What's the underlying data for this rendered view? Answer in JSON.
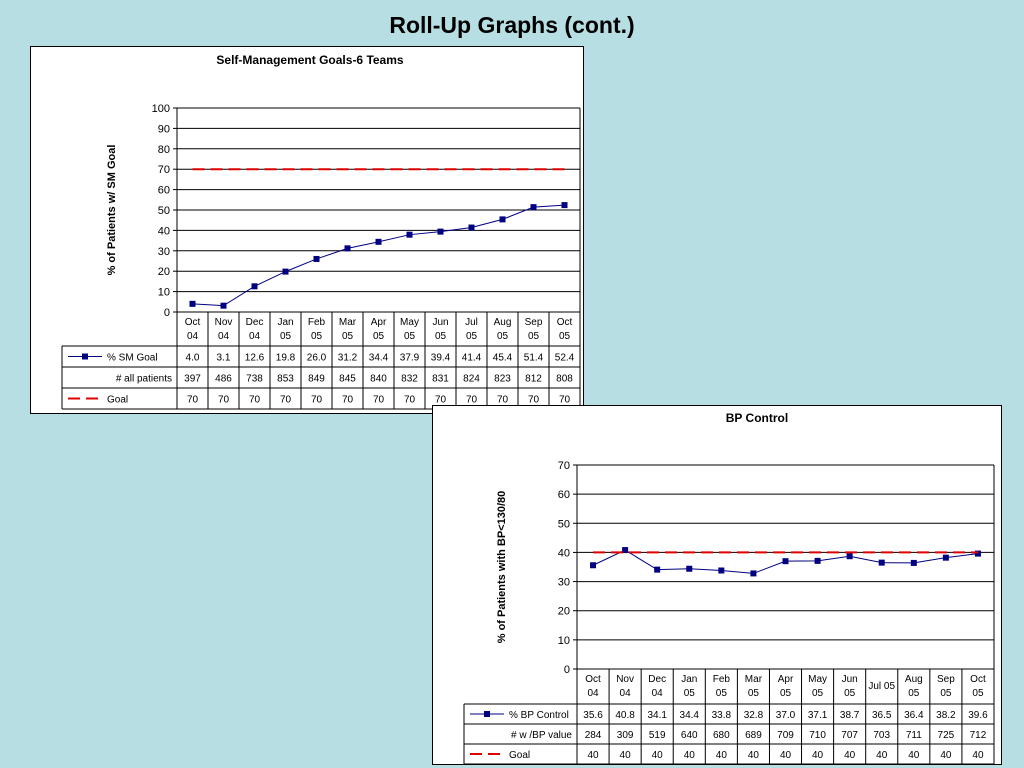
{
  "slide": {
    "title": "Roll-Up Graphs (cont.)"
  },
  "colors": {
    "series": "#000080",
    "goal": "#e00000",
    "background": "#b7dfe3"
  },
  "chart_data": [
    {
      "type": "line",
      "title": "Self-Management Goals-6 Teams",
      "ylabel": "% of Patients w/ SM Goal",
      "xlabel": "",
      "ylim": [
        0,
        100
      ],
      "yticks": [
        0,
        10,
        20,
        30,
        40,
        50,
        60,
        70,
        80,
        90,
        100
      ],
      "grid": true,
      "legend": "data-table",
      "categories": [
        [
          "Oct",
          "04"
        ],
        [
          "Nov",
          "04"
        ],
        [
          "Dec",
          "04"
        ],
        [
          "Jan",
          "05"
        ],
        [
          "Feb",
          "05"
        ],
        [
          "Mar",
          "05"
        ],
        [
          "Apr",
          "05"
        ],
        [
          "May",
          "05"
        ],
        [
          "Jun",
          "05"
        ],
        [
          "Jul",
          "05"
        ],
        [
          "Aug",
          "05"
        ],
        [
          "Sep",
          "05"
        ],
        [
          "Oct",
          "05"
        ]
      ],
      "series": [
        {
          "name": "% SM Goal",
          "style": "line-marker",
          "values": [
            4.0,
            3.1,
            12.6,
            19.8,
            26.0,
            31.2,
            34.4,
            37.9,
            39.4,
            41.4,
            45.4,
            51.4,
            52.4
          ],
          "labels": [
            "4.0",
            "3.1",
            "12.6",
            "19.8",
            "26.0",
            "31.2",
            "34.4",
            "37.9",
            "39.4",
            "41.4",
            "45.4",
            "51.4",
            "52.4"
          ]
        },
        {
          "name": "Goal",
          "style": "dashed",
          "values": [
            70,
            70,
            70,
            70,
            70,
            70,
            70,
            70,
            70,
            70,
            70,
            70,
            70
          ]
        }
      ],
      "table_rows": [
        {
          "label": "% SM Goal",
          "legend": "line-marker",
          "values": [
            "4.0",
            "3.1",
            "12.6",
            "19.8",
            "26.0",
            "31.2",
            "34.4",
            "37.9",
            "39.4",
            "41.4",
            "45.4",
            "51.4",
            "52.4"
          ]
        },
        {
          "label": "# all patients",
          "legend": "none",
          "values": [
            "397",
            "486",
            "738",
            "853",
            "849",
            "845",
            "840",
            "832",
            "831",
            "824",
            "823",
            "812",
            "808"
          ]
        },
        {
          "label": "Goal",
          "legend": "dashed",
          "values": [
            "70",
            "70",
            "70",
            "70",
            "70",
            "70",
            "70",
            "70",
            "70",
            "70",
            "70",
            "70",
            "70"
          ]
        }
      ]
    },
    {
      "type": "line",
      "title": "BP Control",
      "ylabel": "% of Patients with BP<130/80",
      "xlabel": "",
      "ylim": [
        0,
        70
      ],
      "yticks": [
        0,
        10,
        20,
        30,
        40,
        50,
        60,
        70
      ],
      "grid": true,
      "legend": "data-table",
      "categories": [
        [
          "Oct",
          "04"
        ],
        [
          "Nov",
          "04"
        ],
        [
          "Dec",
          "04"
        ],
        [
          "Jan",
          "05"
        ],
        [
          "Feb",
          "05"
        ],
        [
          "Mar",
          "05"
        ],
        [
          "Apr",
          "05"
        ],
        [
          "May",
          "05"
        ],
        [
          "Jun",
          "05"
        ],
        [
          "Jul 05"
        ],
        [
          "Aug",
          "05"
        ],
        [
          "Sep",
          "05"
        ],
        [
          "Oct",
          "05"
        ]
      ],
      "series": [
        {
          "name": "% BP Control",
          "style": "line-marker",
          "values": [
            35.6,
            40.8,
            34.1,
            34.4,
            33.8,
            32.8,
            37.0,
            37.1,
            38.7,
            36.5,
            36.4,
            38.2,
            39.6
          ]
        },
        {
          "name": "Goal",
          "style": "dashed",
          "values": [
            40,
            40,
            40,
            40,
            40,
            40,
            40,
            40,
            40,
            40,
            40,
            40,
            40
          ]
        }
      ],
      "table_rows": [
        {
          "label": "% BP Control",
          "legend": "line-marker",
          "values": [
            "35.6",
            "40.8",
            "34.1",
            "34.4",
            "33.8",
            "32.8",
            "37.0",
            "37.1",
            "38.7",
            "36.5",
            "36.4",
            "38.2",
            "39.6"
          ]
        },
        {
          "label": "# w /BP value",
          "legend": "none",
          "values": [
            "284",
            "309",
            "519",
            "640",
            "680",
            "689",
            "709",
            "710",
            "707",
            "703",
            "711",
            "725",
            "712"
          ]
        },
        {
          "label": "Goal",
          "legend": "dashed",
          "values": [
            "40",
            "40",
            "40",
            "40",
            "40",
            "40",
            "40",
            "40",
            "40",
            "40",
            "40",
            "40",
            "40"
          ]
        }
      ]
    }
  ]
}
